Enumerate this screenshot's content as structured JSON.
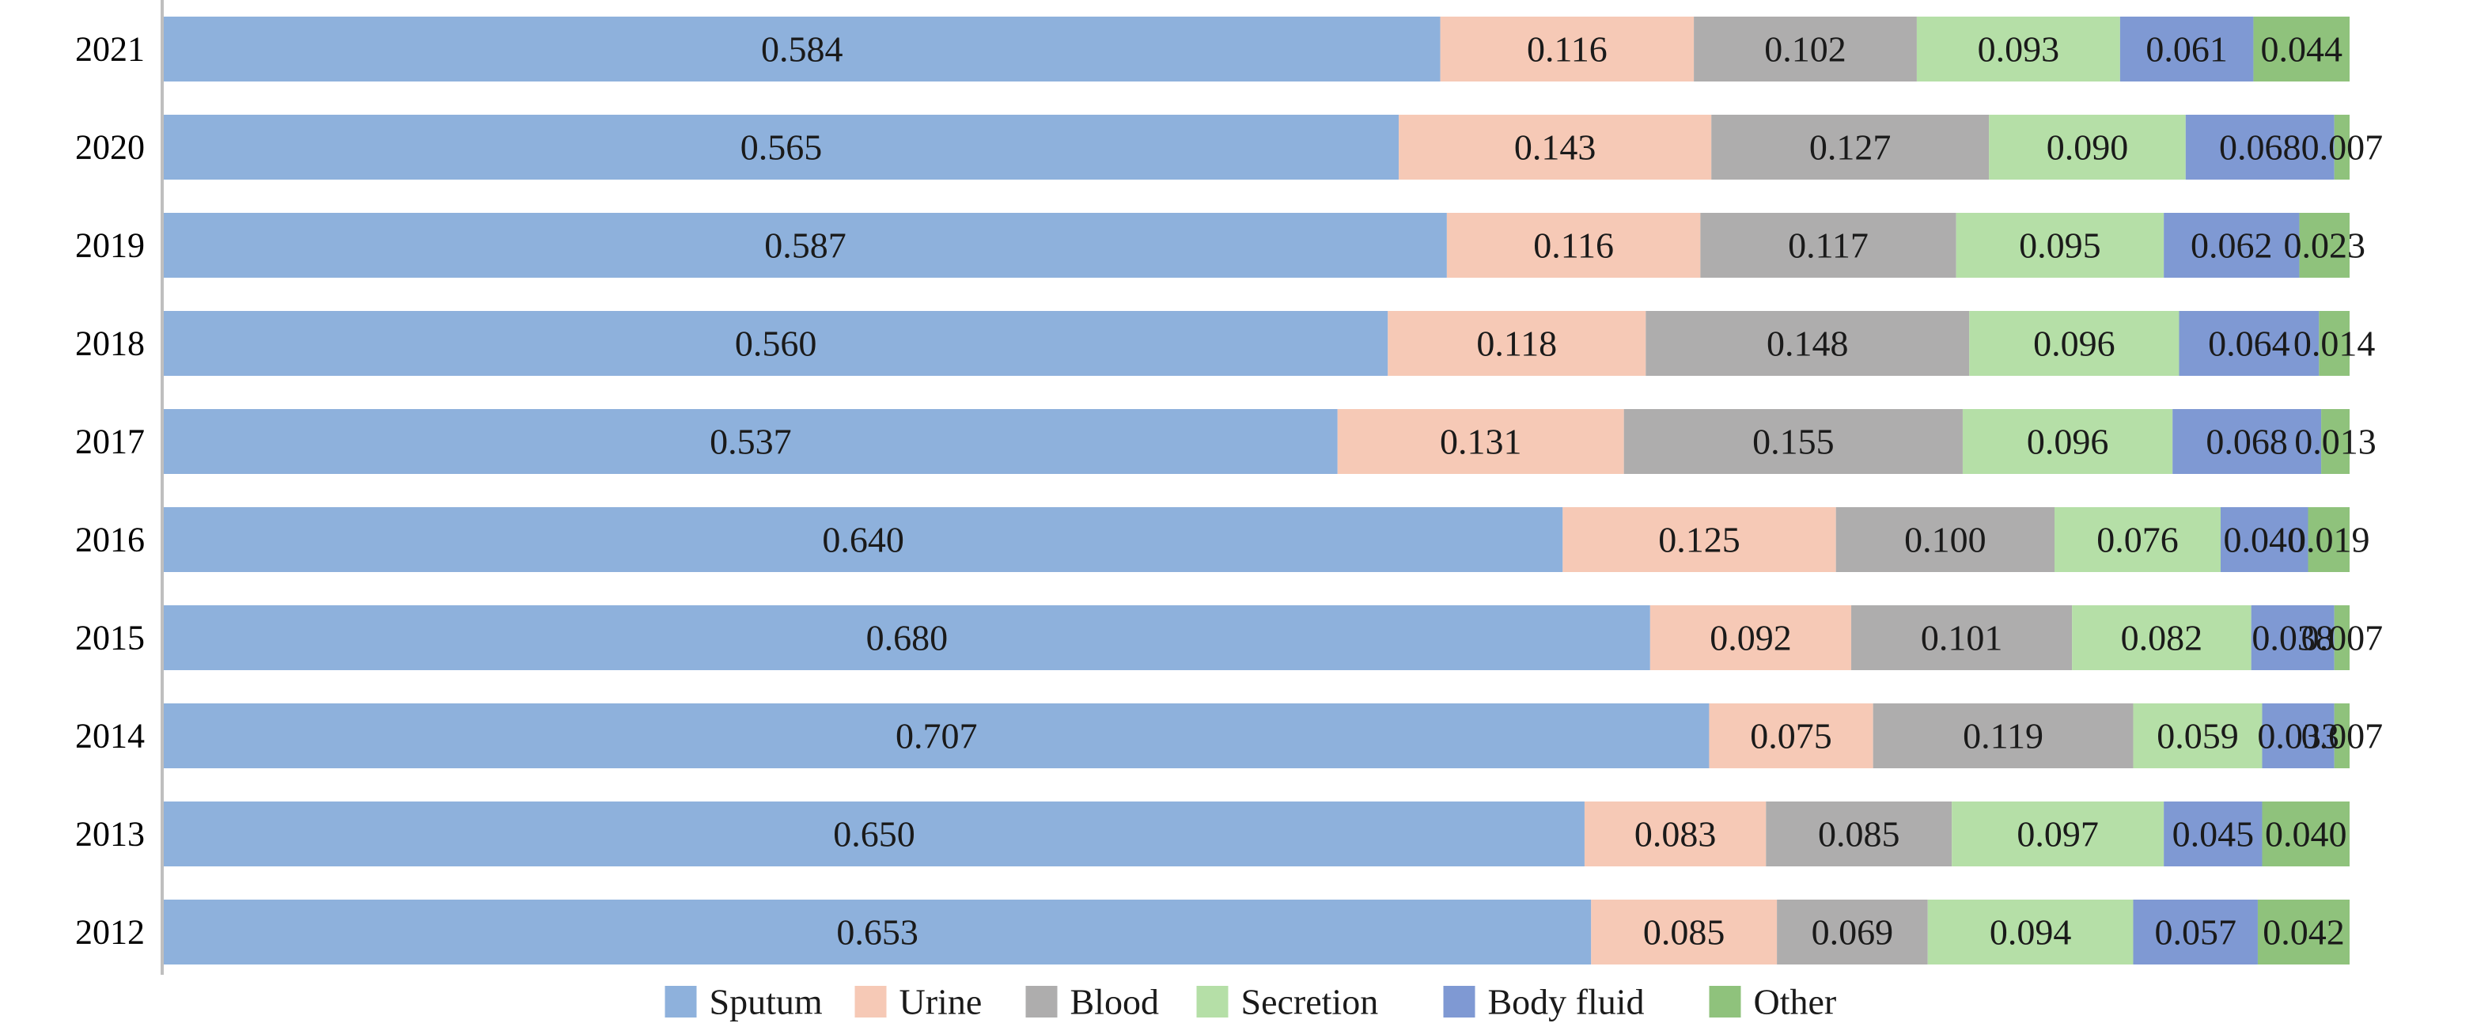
{
  "chart_data": {
    "type": "bar",
    "orientation": "horizontal",
    "stacked": true,
    "title": "",
    "xlabel": "",
    "ylabel": "",
    "categories": [
      "2021",
      "2020",
      "2019",
      "2018",
      "2017",
      "2016",
      "2015",
      "2014",
      "2013",
      "2012"
    ],
    "xlim": [
      0,
      1
    ],
    "grid": false,
    "legend_position": "bottom",
    "series": [
      {
        "name": "Sputum",
        "color": "#8EB1DC",
        "values": [
          0.584,
          0.565,
          0.587,
          0.56,
          0.537,
          0.64,
          0.68,
          0.707,
          0.65,
          0.653
        ],
        "labels": [
          "0.584",
          "0.565",
          "0.587",
          "0.560",
          "0.537",
          "0.640",
          "0.680",
          "0.707",
          "0.650",
          "0.653"
        ]
      },
      {
        "name": "Urine",
        "color": "#F6C9B6",
        "values": [
          0.116,
          0.143,
          0.116,
          0.118,
          0.131,
          0.125,
          0.092,
          0.075,
          0.083,
          0.085
        ],
        "labels": [
          "0.116",
          "0.143",
          "0.116",
          "0.118",
          "0.131",
          "0.125",
          "0.092",
          "0.075",
          "0.083",
          "0.085"
        ]
      },
      {
        "name": "Blood",
        "color": "#AEADAD",
        "values": [
          0.102,
          0.127,
          0.117,
          0.148,
          0.155,
          0.1,
          0.101,
          0.119,
          0.085,
          0.069
        ],
        "labels": [
          "0.102",
          "0.127",
          "0.117",
          "0.148",
          "0.155",
          "0.100",
          "0.101",
          "0.119",
          "0.085",
          "0.069"
        ]
      },
      {
        "name": "Secretion",
        "color": "#B5DFA7",
        "values": [
          0.093,
          0.09,
          0.095,
          0.096,
          0.096,
          0.076,
          0.082,
          0.059,
          0.097,
          0.094
        ],
        "labels": [
          "0.093",
          "0.090",
          "0.095",
          "0.096",
          "0.096",
          "0.076",
          "0.082",
          "0.059",
          "0.097",
          "0.094"
        ]
      },
      {
        "name": "Body fluid",
        "color": "#7F99D3",
        "values": [
          0.061,
          0.068,
          0.062,
          0.064,
          0.068,
          0.04,
          0.038,
          0.033,
          0.045,
          0.057
        ],
        "labels": [
          "0.061",
          "0.068",
          "0.062",
          "0.064",
          "0.068",
          "0.040",
          "0.038",
          "0.033",
          "0.045",
          "0.057"
        ]
      },
      {
        "name": "Other",
        "color": "#8FC27C",
        "values": [
          0.044,
          0.007,
          0.023,
          0.014,
          0.013,
          0.019,
          0.007,
          0.007,
          0.04,
          0.042
        ],
        "labels": [
          "0.044",
          "0.007",
          "0.023",
          "0.014",
          "0.013",
          "0.019",
          "0.007",
          "0.007",
          "0.040",
          "0.042"
        ]
      }
    ]
  }
}
